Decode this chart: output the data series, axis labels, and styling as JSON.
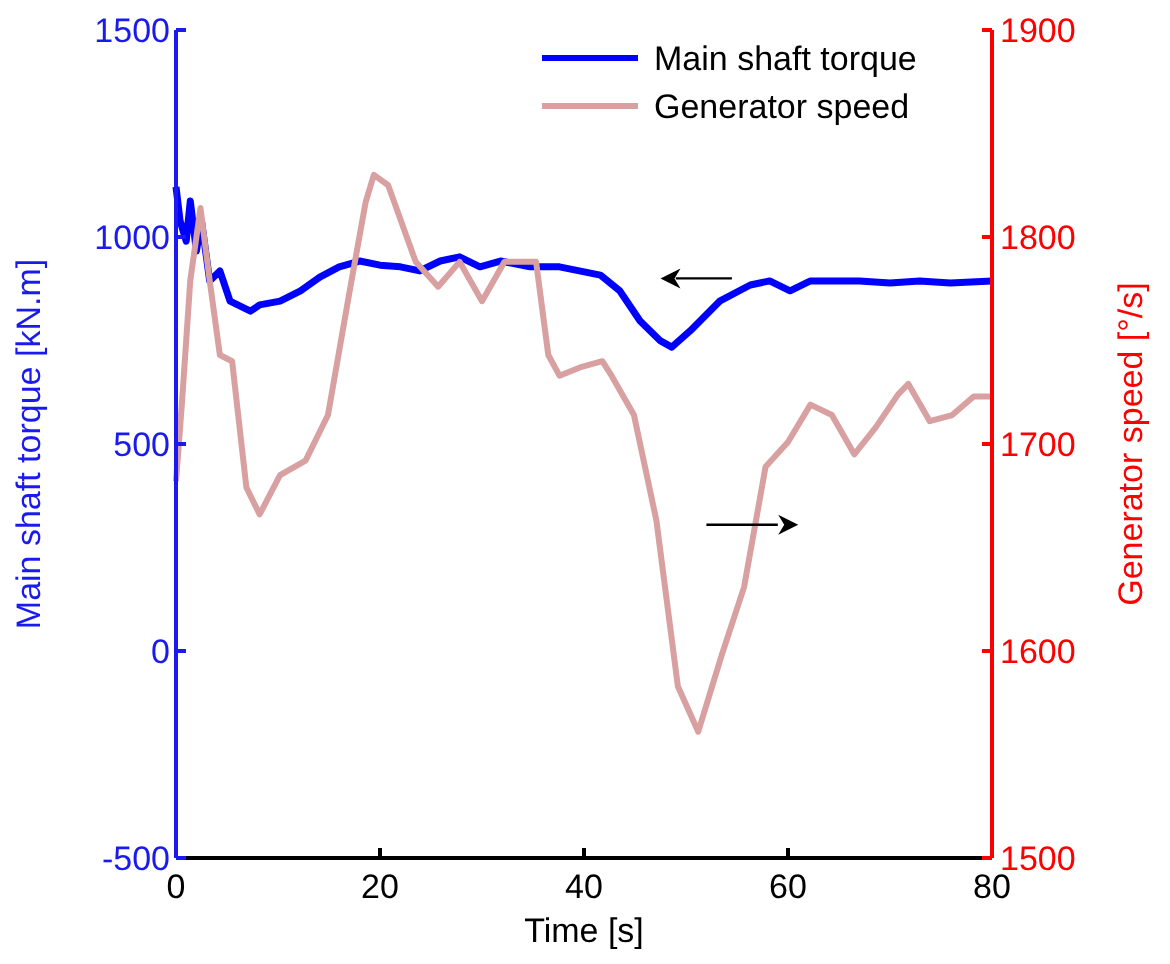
{
  "chart_data": {
    "type": "line",
    "xlabel": "Time [s]",
    "ylabel": "Main shaft torque [kN.m]",
    "y2label": "Generator speed [°/s]",
    "xlim": [
      0,
      80
    ],
    "xticks": [
      0,
      20,
      40,
      60,
      80
    ],
    "ylim": [
      -500,
      1500
    ],
    "yticks": [
      -500,
      0,
      500,
      1000,
      1500
    ],
    "y2lim": [
      1500,
      1900
    ],
    "y2ticks": [
      1500,
      1600,
      1700,
      1800,
      1900
    ],
    "legend": "top right",
    "series": [
      {
        "name": "Main shaft torque",
        "color": "#0000ff",
        "x": [
          0,
          0.4,
          1,
          1.4,
          2,
          2.5,
          3.3,
          4.3,
          5.3,
          7.3,
          8.2,
          10.2,
          12.2,
          14.1,
          16,
          18,
          20,
          22,
          23.9,
          25.9,
          27.8,
          29.8,
          31.8,
          34.7,
          37.6,
          41.6,
          43.5,
          45.5,
          47.5,
          48.6,
          50.4,
          53.3,
          56.3,
          58.2,
          60.2,
          62.2,
          64.1,
          67,
          70,
          72.9,
          75.9,
          80
        ],
        "values": [
          1121,
          1039,
          990,
          1087,
          966,
          1039,
          894,
          918,
          845,
          821,
          836,
          845,
          870,
          903,
          928,
          942,
          932,
          928,
          918,
          942,
          952,
          928,
          942,
          928,
          928,
          908,
          870,
          797,
          749,
          734,
          773,
          845,
          884,
          894,
          870,
          894,
          894,
          894,
          889,
          894,
          889,
          894
        ]
      },
      {
        "name": "Generator speed",
        "color": "#d8a0a0",
        "axis": "y2",
        "x": [
          0,
          0.6,
          1.4,
          2.4,
          3.3,
          4.3,
          5.5,
          6.9,
          8.2,
          10.2,
          12.7,
          14.9,
          17.1,
          18.6,
          19.4,
          20.8,
          23.5,
          25.7,
          27.8,
          30,
          32.2,
          35.3,
          36.5,
          37.6,
          39.6,
          41.8,
          42.7,
          44.9,
          47.1,
          49.2,
          51.2,
          53.5,
          55.7,
          57.8,
          60,
          62.2,
          64.3,
          66.5,
          68.6,
          70.8,
          71.8,
          73.9,
          76.1,
          78.2,
          80
        ],
        "values": [
          1682,
          1721,
          1779,
          1814,
          1779,
          1743,
          1740,
          1679,
          1666,
          1685,
          1692,
          1714,
          1776,
          1817,
          1830,
          1825,
          1788,
          1776,
          1788,
          1769,
          1788,
          1788,
          1743,
          1733,
          1737,
          1740,
          1733,
          1714,
          1663,
          1583,
          1561,
          1598,
          1631,
          1689,
          1701,
          1719,
          1714,
          1695,
          1708,
          1724,
          1729,
          1711,
          1714,
          1723,
          1723
        ]
      }
    ]
  }
}
